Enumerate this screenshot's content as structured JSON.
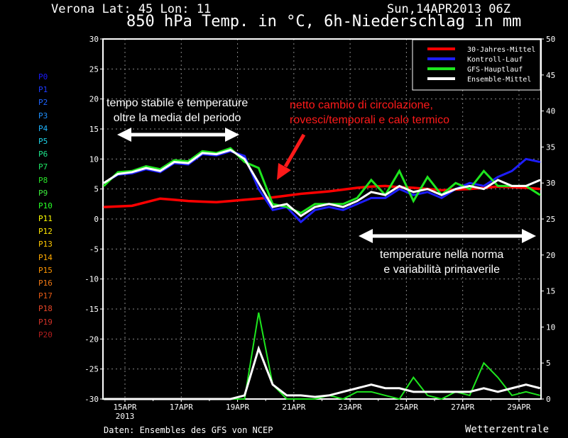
{
  "header": {
    "location": "Verona  Lat: 45 Lon: 11",
    "date": "Sun,14APR2013 06Z",
    "title": "850 hPa Temp. in °C, 6h-Niederschlag in mm"
  },
  "footer": {
    "source": "Daten: Ensembles des GFS von NCEP",
    "brand": "Wetterzentrale"
  },
  "members": [
    {
      "label": "P0",
      "color": "#1a1aff"
    },
    {
      "label": "P1",
      "color": "#1e3cff"
    },
    {
      "label": "P2",
      "color": "#1e64ff"
    },
    {
      "label": "P3",
      "color": "#1e90ff"
    },
    {
      "label": "P4",
      "color": "#1eb4ff"
    },
    {
      "label": "P5",
      "color": "#1ed2e6"
    },
    {
      "label": "P6",
      "color": "#1ee68c"
    },
    {
      "label": "P7",
      "color": "#1ee664"
    },
    {
      "label": "P8",
      "color": "#28e628"
    },
    {
      "label": "P9",
      "color": "#3cf03c"
    },
    {
      "label": "P10",
      "color": "#28ff28"
    },
    {
      "label": "P11",
      "color": "#ffff00"
    },
    {
      "label": "P12",
      "color": "#ffe600"
    },
    {
      "label": "P13",
      "color": "#ffc800"
    },
    {
      "label": "P14",
      "color": "#ffaa00"
    },
    {
      "label": "P15",
      "color": "#ff9600"
    },
    {
      "label": "P16",
      "color": "#f07814"
    },
    {
      "label": "P17",
      "color": "#e65a14"
    },
    {
      "label": "P18",
      "color": "#e64628"
    },
    {
      "label": "P19",
      "color": "#d23228"
    },
    {
      "label": "P20",
      "color": "#b41e1e"
    }
  ],
  "annotations": {
    "stable": [
      "tempo stabile e temperature",
      "oltre la media del periodo"
    ],
    "change": [
      "netto cambio di circolazione,",
      "rovesci/temporali e calo termico"
    ],
    "normal": [
      "temperature nella norma",
      "e variabilità primaverile"
    ],
    "change_color": "#ff1a1a"
  },
  "chart_data": {
    "type": "line",
    "title": "850 hPa Temp. in °C, 6h-Niederschlag in mm",
    "ylim": [
      -30,
      30
    ],
    "y2lim": [
      0,
      50
    ],
    "yticks": [
      "-30",
      "-25",
      "-20",
      "-15",
      "-10",
      "-5",
      "0",
      "5",
      "10",
      "15",
      "20",
      "25",
      "30"
    ],
    "y2ticks": [
      "0",
      "5",
      "10",
      "15",
      "20",
      "25",
      "30",
      "35",
      "40",
      "45",
      "50"
    ],
    "xticks": [
      "15APR",
      "17APR",
      "19APR",
      "21APR",
      "23APR",
      "25APR",
      "27APR",
      "29APR"
    ],
    "xtick_year": "2013",
    "grid": true,
    "legend_position": "top-right",
    "times": [
      "14APR 06Z",
      "14APR 18Z",
      "15APR 06Z",
      "15APR 18Z",
      "16APR 06Z",
      "16APR 18Z",
      "17APR 06Z",
      "17APR 18Z",
      "18APR 06Z",
      "18APR 18Z",
      "19APR 06Z",
      "19APR 18Z",
      "20APR 06Z",
      "20APR 18Z",
      "21APR 06Z",
      "21APR 18Z",
      "22APR 06Z",
      "22APR 18Z",
      "23APR 06Z",
      "23APR 18Z",
      "24APR 06Z",
      "24APR 18Z",
      "25APR 06Z",
      "25APR 18Z",
      "26APR 06Z",
      "26APR 18Z",
      "27APR 06Z",
      "27APR 18Z",
      "28APR 06Z",
      "28APR 18Z",
      "29APR 06Z",
      "29APR 18Z"
    ],
    "series": [
      {
        "name": "30-Jahres-Mittel",
        "color": "#ff0000",
        "values": [
          2,
          2.1,
          2.2,
          2.8,
          3.4,
          3.2,
          3,
          2.9,
          2.8,
          3,
          3.2,
          3.4,
          3.6,
          3.9,
          4.2,
          4.4,
          4.6,
          4.9,
          5.2,
          5.4,
          5.5,
          5.3,
          5.2,
          5,
          4.8,
          4.9,
          5,
          5.2,
          5.4,
          5.3,
          5.2,
          5
        ]
      },
      {
        "name": "Kontroll-Lauf",
        "color": "#1e1eff",
        "values": [
          6,
          7.4,
          7.6,
          8.3,
          7.8,
          9.3,
          9.1,
          10.8,
          10.6,
          11.3,
          10.5,
          5,
          1.5,
          2,
          -0.5,
          1.5,
          2,
          1.5,
          2.5,
          3.5,
          3.5,
          5,
          4,
          4.5,
          3.5,
          5,
          6,
          5.5,
          7,
          8,
          10,
          9.5
        ]
      },
      {
        "name": "GFS-Hauptlauf",
        "color": "#1ee61e",
        "values": [
          5.5,
          7.8,
          8,
          8.8,
          8.3,
          9.8,
          9.6,
          11.3,
          11,
          11.8,
          9.5,
          8.5,
          2.5,
          2,
          1,
          2.5,
          2.5,
          2.5,
          3.5,
          6.5,
          4,
          8,
          3,
          7,
          4,
          6,
          5,
          8,
          5.5,
          5.5,
          5.5,
          4
        ]
      },
      {
        "name": "Ensemble-Mittel",
        "color": "#ffffff",
        "values": [
          6,
          7.5,
          7.8,
          8.5,
          8,
          9.5,
          9.3,
          11,
          10.8,
          11.5,
          10,
          6,
          2,
          2.5,
          0.5,
          2,
          2.5,
          2,
          3,
          4.5,
          4,
          5.5,
          4.5,
          5,
          4,
          5,
          5.5,
          5,
          6.5,
          5.5,
          5.5,
          6.5
        ]
      }
    ],
    "precipitation": [
      {
        "name": "GFS-Hauptlauf",
        "color": "#1ee61e",
        "values": [
          0,
          0,
          0,
          0,
          0,
          0,
          0,
          0,
          0,
          0,
          0,
          12,
          2,
          0,
          0,
          0,
          0.5,
          0,
          1,
          1,
          0.5,
          0,
          3,
          0.5,
          0,
          1,
          0.5,
          5,
          3,
          0.5,
          1,
          0.5
        ]
      },
      {
        "name": "Ensemble-Mittel",
        "color": "#ffffff",
        "values": [
          0,
          0,
          0,
          0,
          0,
          0,
          0,
          0,
          0,
          0,
          0.5,
          7,
          2,
          0.5,
          0.5,
          0.3,
          0.5,
          1,
          1.5,
          2,
          1.5,
          1.5,
          1,
          1,
          1,
          1,
          1,
          1.5,
          1,
          1.5,
          2,
          1.5
        ]
      }
    ]
  }
}
